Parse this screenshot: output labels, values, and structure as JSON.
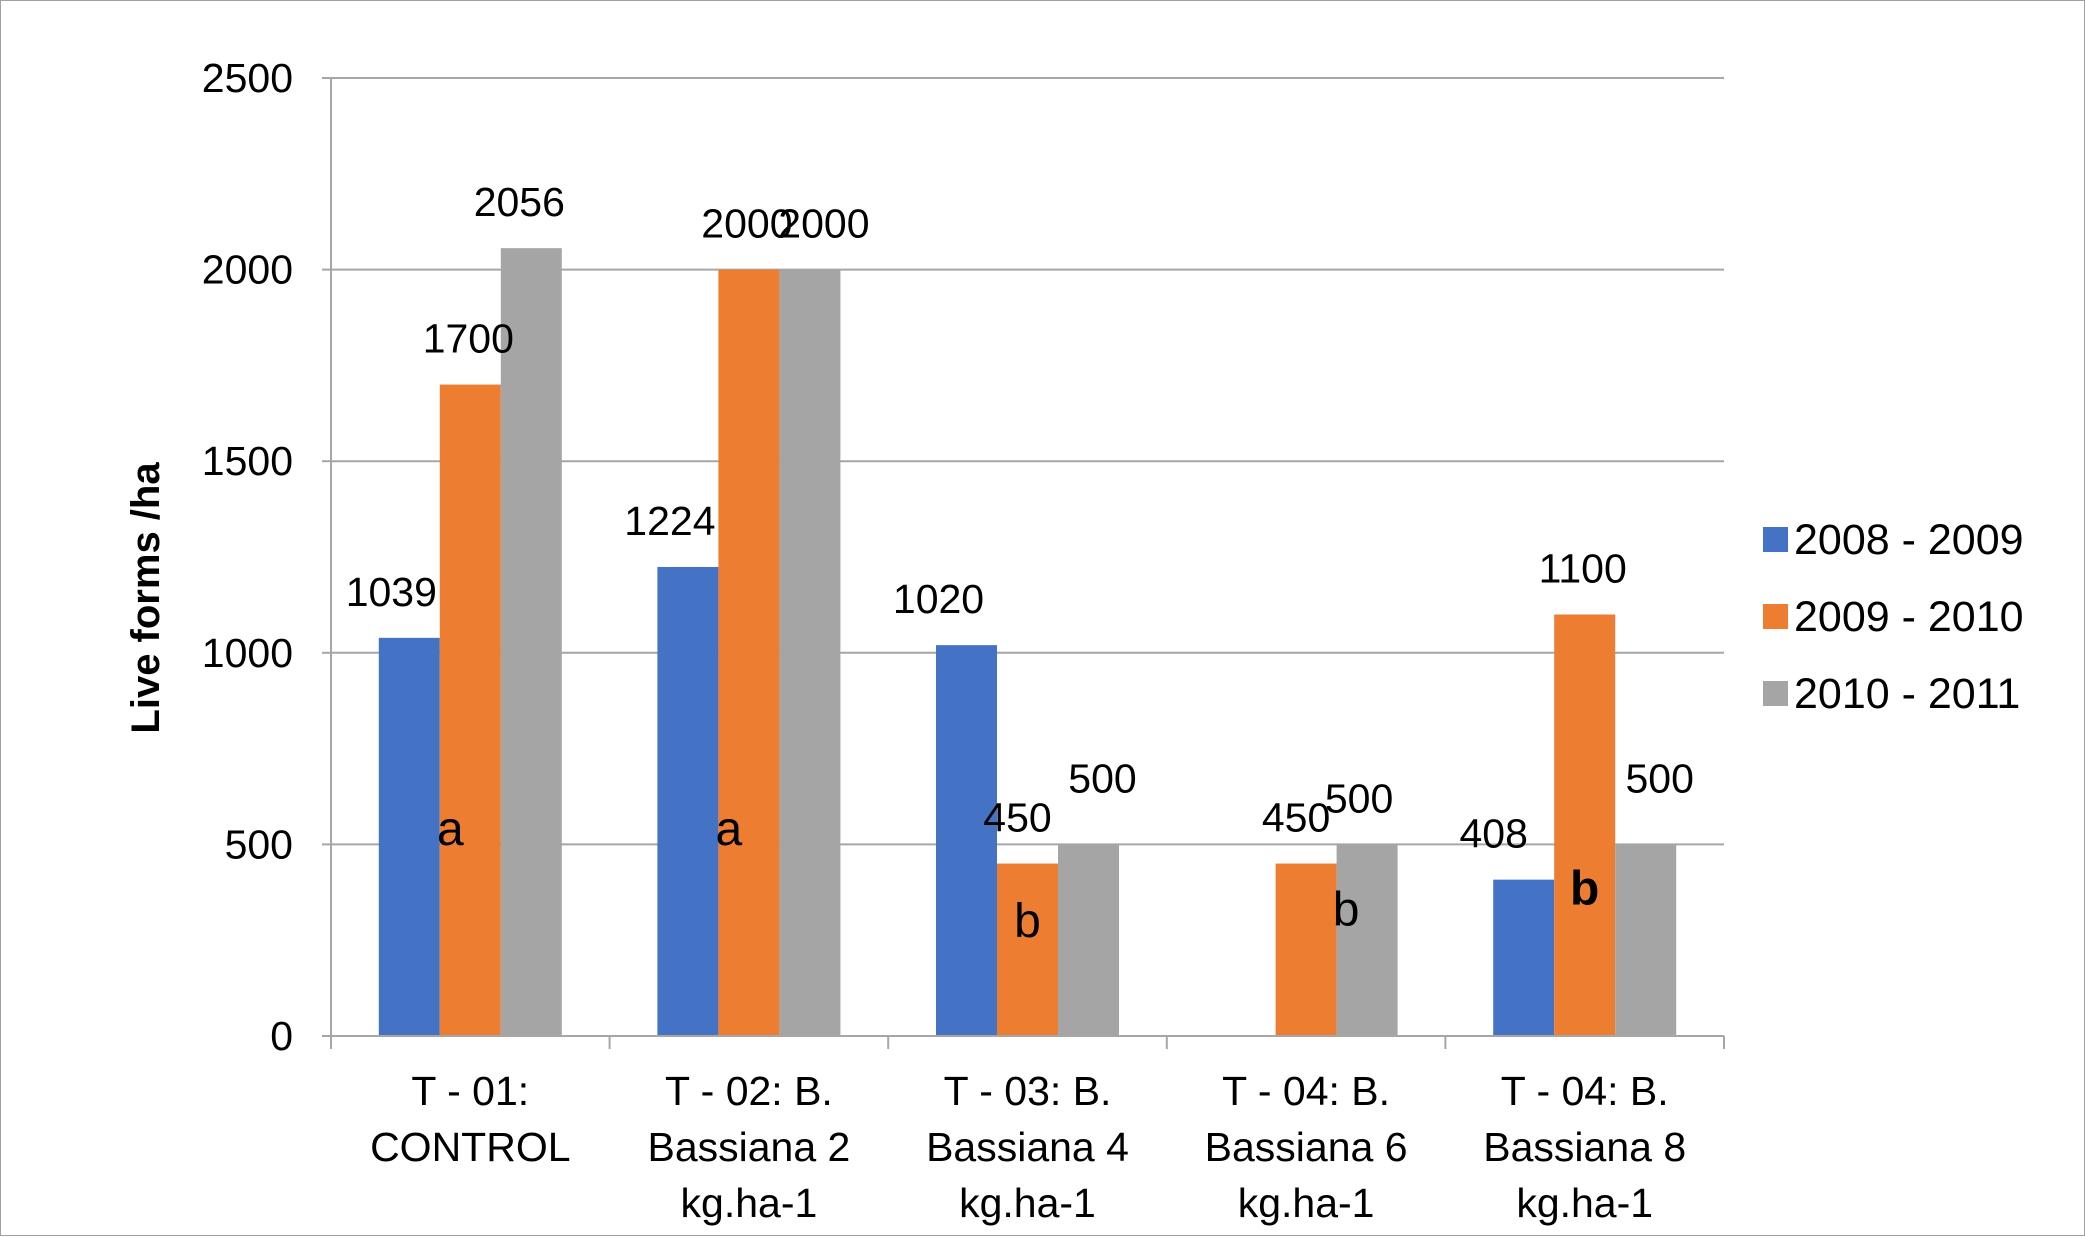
{
  "chart_data": {
    "type": "bar",
    "title": "",
    "xlabel": "",
    "ylabel": "Live forms /ha",
    "ylim": [
      0,
      2500
    ],
    "yticks": [
      "0",
      "500",
      "1000",
      "1500",
      "2000",
      "2500"
    ],
    "grid": true,
    "legend_position": "right",
    "categories": [
      [
        "T - 01:",
        "CONTROL"
      ],
      [
        "T - 02: B.",
        "Bassiana 2",
        "kg.ha-1"
      ],
      [
        "T - 03: B.",
        "Bassiana 4",
        "kg.ha-1"
      ],
      [
        "T - 04: B.",
        "Bassiana 6",
        "kg.ha-1"
      ],
      [
        "T - 04: B.",
        "Bassiana 8",
        "kg.ha-1"
      ]
    ],
    "series": [
      {
        "name": "2008 - 2009",
        "color": "#4472C4",
        "values": [
          1039,
          1224,
          1020,
          0,
          408
        ],
        "labels": [
          "1039",
          "1224",
          "1020",
          "",
          "408"
        ]
      },
      {
        "name": "2009 - 2010",
        "color": "#ED7D31",
        "values": [
          1700,
          2000,
          450,
          450,
          1100
        ],
        "labels": [
          "1700",
          "2000",
          "450",
          "450",
          "1100"
        ]
      },
      {
        "name": "2010 - 2011",
        "color": "#A5A5A5",
        "values": [
          2056,
          2000,
          500,
          500,
          500
        ],
        "labels": [
          "2056",
          "2000",
          "500",
          "500",
          "500"
        ]
      }
    ],
    "significance_letters": [
      {
        "category": 0,
        "letter": "a",
        "value": 540,
        "bold": false
      },
      {
        "category": 1,
        "letter": "a",
        "value": 540,
        "bold": false
      },
      {
        "category": 2,
        "letter": "b",
        "value": 300,
        "bold": false
      },
      {
        "category": 3,
        "letter": "b",
        "value": 330,
        "bold": false
      },
      {
        "category": 4,
        "letter": "b",
        "value": 385,
        "bold": true
      }
    ]
  }
}
